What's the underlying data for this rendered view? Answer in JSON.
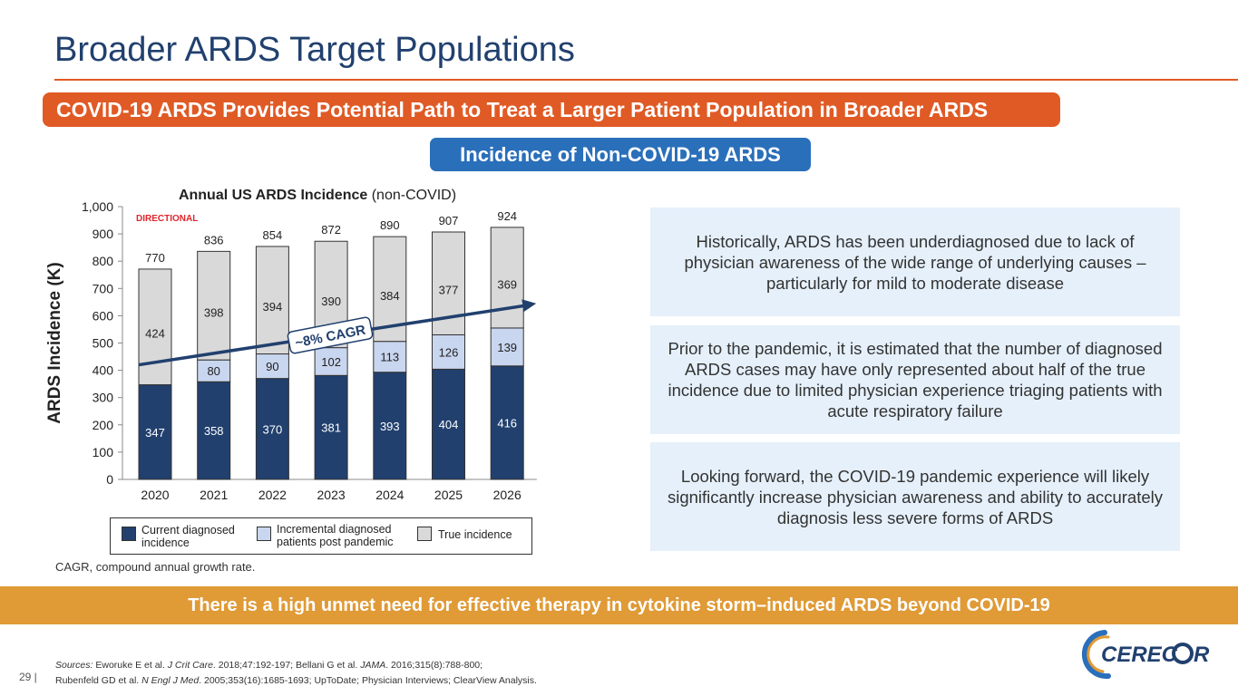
{
  "slide": {
    "title": "Broader ARDS Target Populations",
    "banner_top": "COVID-19 ARDS Provides Potential Path to Treat a Larger Patient Population in Broader ARDS",
    "section_label": "Incidence of Non-COVID-19 ARDS",
    "callouts": [
      "Historically, ARDS has been underdiagnosed due to lack of physician awareness of the wide range of underlying causes – particularly for mild to moderate disease",
      "Prior to the pandemic, it is estimated that the number of diagnosed ARDS cases may have only represented about half of the true incidence due to limited physician experience triaging patients with acute respiratory failure",
      "Looking forward, the COVID-19 pandemic experience will likely significantly increase physician awareness and ability to accurately diagnosis less severe forms of ARDS"
    ],
    "abbr_note": "CAGR, compound annual growth rate.",
    "banner_bottom": "There is a high unmet need for effective therapy in cytokine storm–induced ARDS beyond COVID-19",
    "sources": {
      "prefix": "Sources:",
      "line1_a": " Eworuke E et al. ",
      "line1_b": "J Crit Care",
      "line1_c": ". 2018;47:192-197; Bellani G et al. ",
      "line1_d": "JAMA",
      "line1_e": ". 2016;315(8):788-800;",
      "line2_a": "Rubenfeld GD et al. ",
      "line2_b": "N Engl J Med",
      "line2_c": ". 2005;353(16):1685-1693; UpToDate; Physician Interviews; ClearView Analysis."
    },
    "page_number": "29 |",
    "logo_text": "CEREC",
    "logo_suffix": "R",
    "colors": {
      "navy": "#21406e",
      "orange": "#e05a25",
      "blue": "#2a6fba",
      "gold": "#e09a36",
      "light": "#e5f0fa"
    }
  },
  "chart_data": {
    "type": "bar",
    "stacked": true,
    "title_bold": "Annual US ARDS Incidence",
    "title_rest": " (non-COVID)",
    "tag": "DIRECTIONAL",
    "ylabel": "ARDS Incidence (K)",
    "ylim": [
      0,
      1000
    ],
    "yticks": [
      0,
      100,
      200,
      300,
      400,
      500,
      600,
      700,
      800,
      900,
      1000
    ],
    "ytick_labels": [
      "0",
      "100",
      "200",
      "300",
      "400",
      "500",
      "600",
      "700",
      "800",
      "900",
      "1,000"
    ],
    "categories": [
      "2020",
      "2021",
      "2022",
      "2023",
      "2024",
      "2025",
      "2026"
    ],
    "series": [
      {
        "name": "Current diagnosed incidence",
        "color": "#21406e",
        "values": [
          347,
          358,
          370,
          381,
          393,
          404,
          416
        ]
      },
      {
        "name": "Incremental diagnosed patients post pandemic",
        "color": "#c9d6ef",
        "values": [
          null,
          80,
          90,
          102,
          113,
          126,
          139
        ]
      },
      {
        "name": "True incidence",
        "color": "#d9d9d9",
        "values": [
          424,
          398,
          394,
          390,
          384,
          377,
          369
        ]
      }
    ],
    "totals": [
      "770",
      "836",
      "854",
      "872",
      "890",
      "907",
      "924"
    ],
    "trend": {
      "label": "~8% CAGR",
      "from_value": 420,
      "to_value": 645
    },
    "legend": [
      {
        "line1": "Current diagnosed",
        "line2": "incidence"
      },
      {
        "line1": "Incremental diagnosed",
        "line2": "patients post pandemic"
      },
      {
        "line1": "True incidence",
        "line2": ""
      }
    ]
  }
}
